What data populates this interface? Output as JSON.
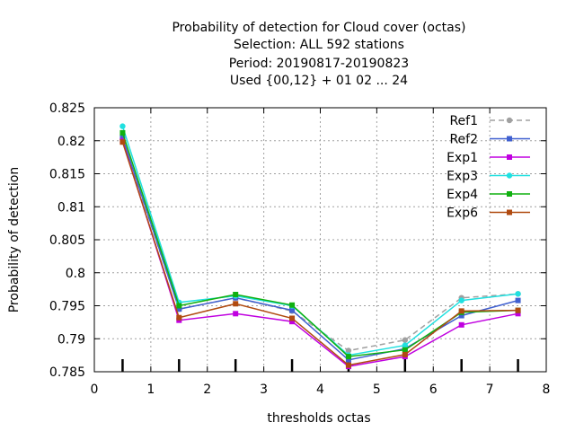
{
  "chart_data": {
    "type": "line",
    "title_lines": [
      "Probability of detection  for Cloud cover (octas)",
      "Selection: ALL    592 stations",
      "Period: 20190817-20190823",
      "Used {00,12} + 01 02 ... 24"
    ],
    "xlabel": "thresholds octas",
    "ylabel": "Probability of detection",
    "xlim": [
      0,
      8
    ],
    "ylim": [
      0.785,
      0.825
    ],
    "x_ticks": [
      "0",
      "1",
      "2",
      "3",
      "4",
      "5",
      "6",
      "7",
      "8"
    ],
    "y_ticks": [
      "0.785",
      "0.79",
      "0.795",
      "0.8",
      "0.805",
      "0.81",
      "0.815",
      "0.82",
      "0.825"
    ],
    "grid": true,
    "legend_position": "top-right",
    "x": [
      0.5,
      1.5,
      2.5,
      3.5,
      4.5,
      5.5,
      6.5,
      7.5
    ],
    "series": [
      {
        "name": "Ref1",
        "color": "#a0a0a0",
        "dashed": true,
        "marker": "circle",
        "values": [
          0.8202,
          0.7945,
          0.7962,
          0.7942,
          0.7882,
          0.7898,
          0.7962,
          0.7968
        ]
      },
      {
        "name": "Ref2",
        "color": "#4060d0",
        "dashed": false,
        "marker": "square",
        "values": [
          0.8205,
          0.7945,
          0.7962,
          0.7943,
          0.7868,
          0.7885,
          0.7935,
          0.7958
        ]
      },
      {
        "name": "Exp1",
        "color": "#c000e0",
        "dashed": false,
        "marker": "square",
        "values": [
          0.82,
          0.7928,
          0.7938,
          0.7926,
          0.7858,
          0.7873,
          0.7921,
          0.7938
        ]
      },
      {
        "name": "Exp3",
        "color": "#20e0e0",
        "dashed": false,
        "marker": "circle",
        "values": [
          0.8222,
          0.7955,
          0.7965,
          0.795,
          0.7875,
          0.789,
          0.7958,
          0.7968
        ]
      },
      {
        "name": "Exp4",
        "color": "#10b010",
        "dashed": false,
        "marker": "square",
        "values": [
          0.8212,
          0.795,
          0.7967,
          0.7951,
          0.7873,
          0.7883,
          0.794,
          0.7943
        ]
      },
      {
        "name": "Exp6",
        "color": "#b04a10",
        "dashed": false,
        "marker": "square",
        "values": [
          0.8198,
          0.7932,
          0.7953,
          0.7931,
          0.786,
          0.7876,
          0.7942,
          0.7943
        ]
      }
    ]
  }
}
